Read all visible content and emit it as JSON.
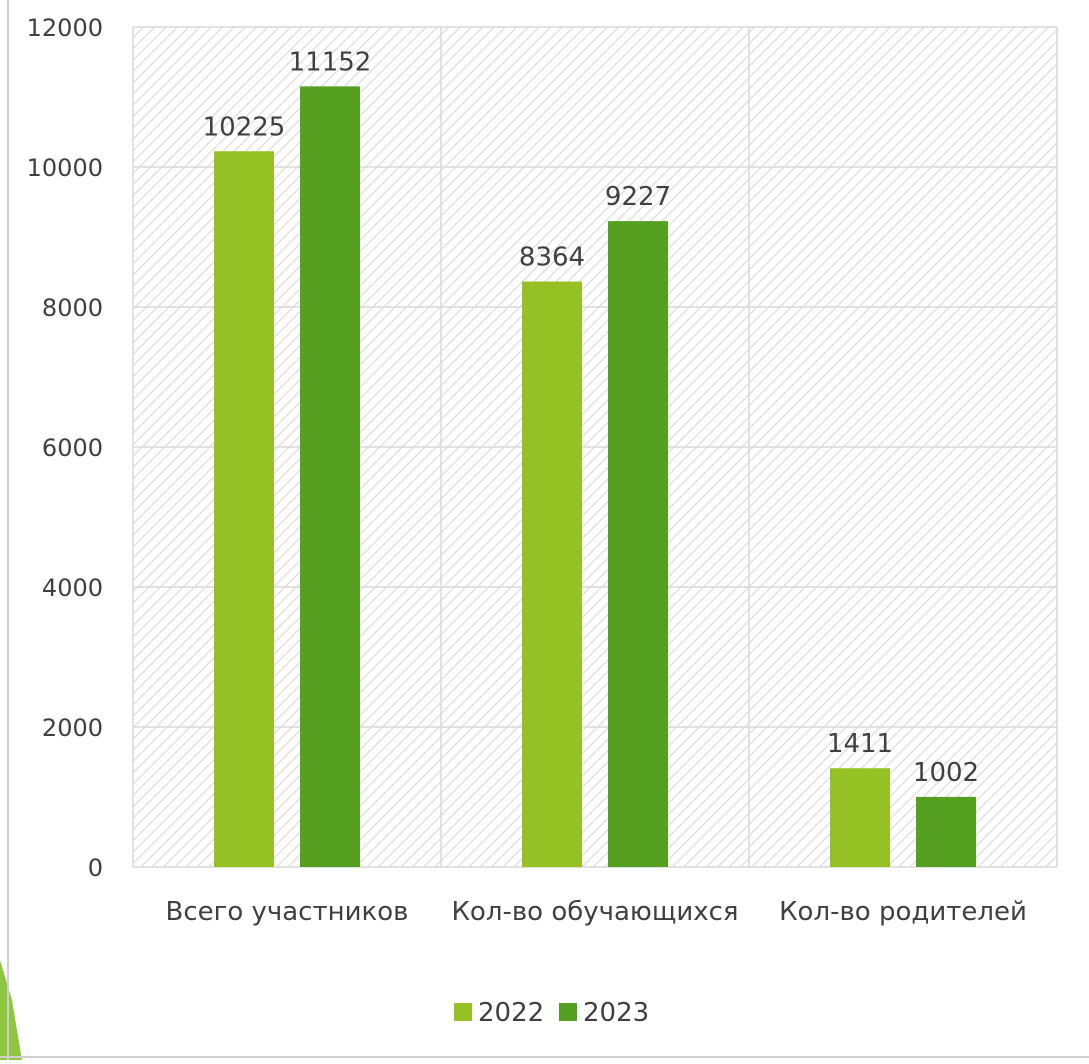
{
  "chart_data": {
    "type": "bar",
    "categories": [
      "Всего участников",
      "Кол-во обучающихся",
      "Кол-во родителей"
    ],
    "series": [
      {
        "name": "2022",
        "values": [
          10225,
          8364,
          1411
        ],
        "color": "#95c125"
      },
      {
        "name": "2023",
        "values": [
          11152,
          9227,
          1002
        ],
        "color": "#56a021"
      }
    ],
    "ylim": [
      0,
      12000
    ],
    "yticks": [
      0,
      2000,
      4000,
      6000,
      8000,
      10000,
      12000
    ],
    "data_labels": true,
    "grid": true,
    "legend_position": "bottom"
  }
}
